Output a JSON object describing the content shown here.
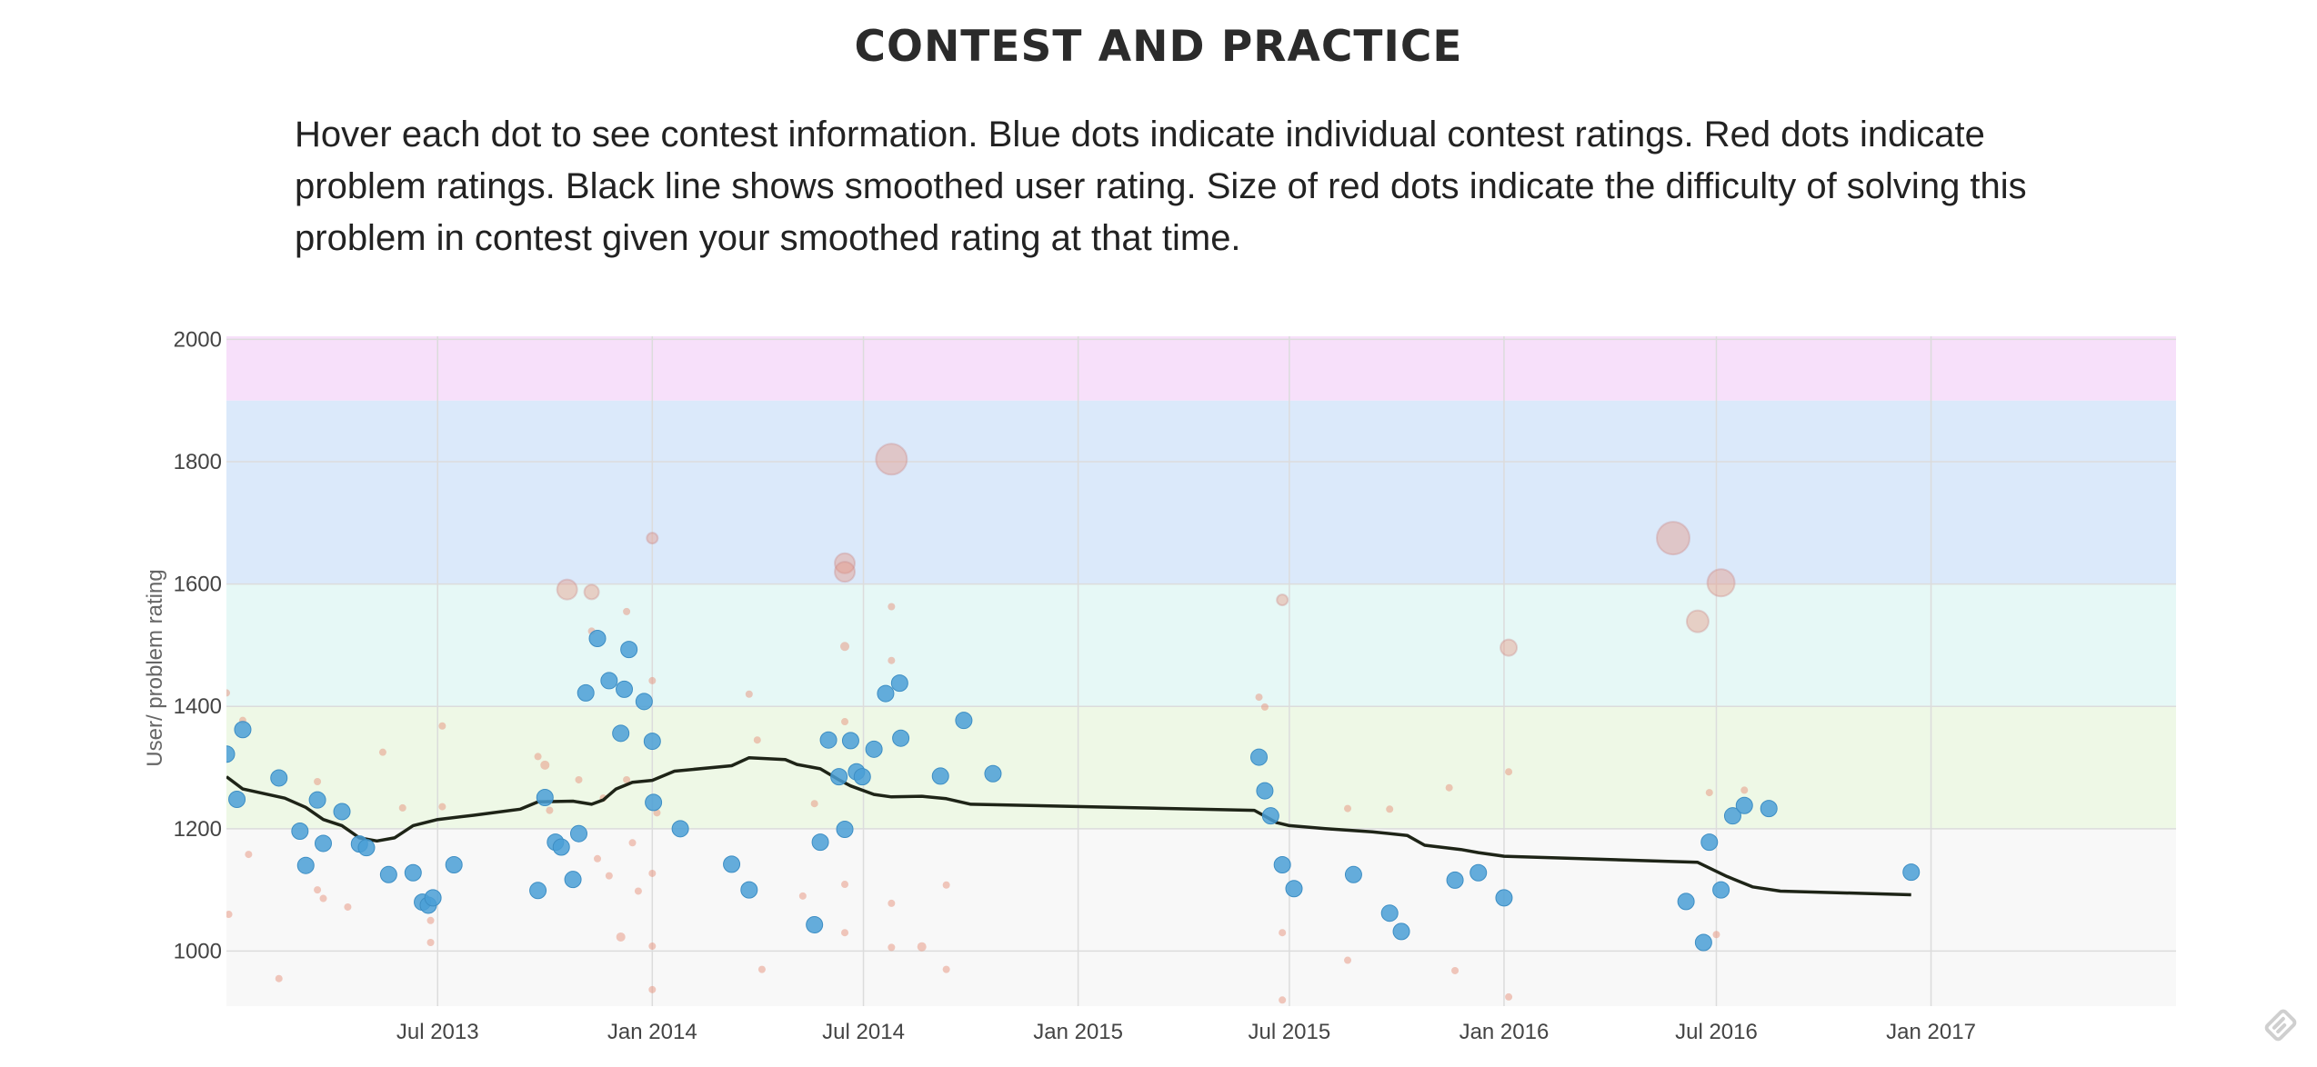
{
  "header": {
    "title": "CONTEST AND PRACTICE",
    "description": "Hover each dot to see contest information. Blue dots indicate individual contest ratings. Red dots indicate problem ratings. Black line shows smoothed user rating. Size of red dots indicate the difficulty of solving this problem in contest given your smoothed rating at that time."
  },
  "colors": {
    "contest_dot": "#4a9fd6",
    "problem_dot": "#e5927c",
    "smoothed_line": "#1e2417",
    "gridline": "#dcdcdc"
  },
  "chart_data": {
    "type": "scatter",
    "title": "",
    "xlabel": "",
    "ylabel": "User/ problem rating",
    "x_range": [
      "2013-01-01",
      "2017-07-30"
    ],
    "ylim": [
      910,
      2005
    ],
    "grid": true,
    "legend": "none",
    "x_ticks": [
      {
        "label": "Jul 2013",
        "date": "2013-07-01"
      },
      {
        "label": "Jan 2014",
        "date": "2014-01-01"
      },
      {
        "label": "Jul 2014",
        "date": "2014-07-01"
      },
      {
        "label": "Jan 2015",
        "date": "2015-01-01"
      },
      {
        "label": "Jul 2015",
        "date": "2015-07-01"
      },
      {
        "label": "Jan 2016",
        "date": "2016-01-01"
      },
      {
        "label": "Jul 2016",
        "date": "2016-07-01"
      },
      {
        "label": "Jan 2017",
        "date": "2017-01-01"
      }
    ],
    "y_ticks": [
      1000,
      1200,
      1400,
      1600,
      1800,
      2000
    ],
    "bands": [
      {
        "from": 910,
        "to": 1200,
        "color": "#f8f8f8"
      },
      {
        "from": 1200,
        "to": 1400,
        "color": "#eef8e6"
      },
      {
        "from": 1400,
        "to": 1600,
        "color": "#e6f8f6"
      },
      {
        "from": 1600,
        "to": 1900,
        "color": "#dbe9fa"
      },
      {
        "from": 1900,
        "to": 2005,
        "color": "#f7e0fa"
      }
    ],
    "series": [
      {
        "type": "line",
        "color": "#1e2417",
        "points": [
          [
            "2013-01-01",
            1285
          ],
          [
            "2013-01-15",
            1265
          ],
          [
            "2013-02-20",
            1250
          ],
          [
            "2013-03-10",
            1235
          ],
          [
            "2013-03-25",
            1215
          ],
          [
            "2013-04-10",
            1205
          ],
          [
            "2013-04-25",
            1185
          ],
          [
            "2013-05-10",
            1180
          ],
          [
            "2013-05-25",
            1185
          ],
          [
            "2013-06-10",
            1205
          ],
          [
            "2013-07-01",
            1215
          ],
          [
            "2013-08-01",
            1222
          ],
          [
            "2013-09-10",
            1232
          ],
          [
            "2013-09-25",
            1244
          ],
          [
            "2013-10-25",
            1245
          ],
          [
            "2013-11-10",
            1240
          ],
          [
            "2013-11-20",
            1247
          ],
          [
            "2013-12-01",
            1265
          ],
          [
            "2013-12-15",
            1276
          ],
          [
            "2014-01-01",
            1279
          ],
          [
            "2014-01-20",
            1294
          ],
          [
            "2014-03-10",
            1303
          ],
          [
            "2014-03-25",
            1316
          ],
          [
            "2014-04-25",
            1313
          ],
          [
            "2014-05-05",
            1305
          ],
          [
            "2014-05-25",
            1298
          ],
          [
            "2014-06-10",
            1280
          ],
          [
            "2014-06-20",
            1270
          ],
          [
            "2014-07-10",
            1256
          ],
          [
            "2014-07-25",
            1252
          ],
          [
            "2014-08-20",
            1253
          ],
          [
            "2014-09-10",
            1249
          ],
          [
            "2014-10-01",
            1240
          ],
          [
            "2015-06-01",
            1230
          ],
          [
            "2015-06-20",
            1210
          ],
          [
            "2015-07-01",
            1205
          ],
          [
            "2015-08-01",
            1200
          ],
          [
            "2015-09-10",
            1195
          ],
          [
            "2015-10-10",
            1189
          ],
          [
            "2015-10-25",
            1173
          ],
          [
            "2015-11-25",
            1166
          ],
          [
            "2015-12-10",
            1161
          ],
          [
            "2016-01-01",
            1155
          ],
          [
            "2016-06-15",
            1145
          ],
          [
            "2016-07-10",
            1122
          ],
          [
            "2016-08-01",
            1105
          ],
          [
            "2016-08-25",
            1098
          ],
          [
            "2016-12-15",
            1092
          ]
        ]
      },
      {
        "type": "contest",
        "color": "#4a9fd6",
        "points": [
          [
            "2013-01-01",
            1322
          ],
          [
            "2013-01-10",
            1248
          ],
          [
            "2013-01-15",
            1362
          ],
          [
            "2013-02-15",
            1283
          ],
          [
            "2013-03-05",
            1196
          ],
          [
            "2013-03-10",
            1140
          ],
          [
            "2013-03-20",
            1247
          ],
          [
            "2013-03-25",
            1176
          ],
          [
            "2013-04-10",
            1228
          ],
          [
            "2013-04-25",
            1175
          ],
          [
            "2013-05-01",
            1169
          ],
          [
            "2013-05-20",
            1125
          ],
          [
            "2013-06-10",
            1128
          ],
          [
            "2013-06-18",
            1080
          ],
          [
            "2013-06-23",
            1075
          ],
          [
            "2013-06-27",
            1087
          ],
          [
            "2013-07-15",
            1141
          ],
          [
            "2013-09-25",
            1099
          ],
          [
            "2013-10-01",
            1251
          ],
          [
            "2013-10-10",
            1178
          ],
          [
            "2013-10-15",
            1170
          ],
          [
            "2013-10-25",
            1117
          ],
          [
            "2013-10-30",
            1192
          ],
          [
            "2013-11-05",
            1422
          ],
          [
            "2013-11-15",
            1511
          ],
          [
            "2013-11-25",
            1442
          ],
          [
            "2013-12-05",
            1356
          ],
          [
            "2013-12-08",
            1428
          ],
          [
            "2013-12-12",
            1493
          ],
          [
            "2013-12-25",
            1408
          ],
          [
            "2014-01-01",
            1343
          ],
          [
            "2014-01-02",
            1243
          ],
          [
            "2014-01-25",
            1200
          ],
          [
            "2014-03-10",
            1142
          ],
          [
            "2014-03-25",
            1100
          ],
          [
            "2014-05-20",
            1043
          ],
          [
            "2014-05-25",
            1178
          ],
          [
            "2014-06-01",
            1345
          ],
          [
            "2014-06-10",
            1285
          ],
          [
            "2014-06-15",
            1199
          ],
          [
            "2014-06-20",
            1344
          ],
          [
            "2014-06-25",
            1293
          ],
          [
            "2014-06-30",
            1285
          ],
          [
            "2014-07-10",
            1330
          ],
          [
            "2014-07-20",
            1421
          ],
          [
            "2014-08-01",
            1438
          ],
          [
            "2014-08-02",
            1348
          ],
          [
            "2014-09-05",
            1286
          ],
          [
            "2014-09-25",
            1377
          ],
          [
            "2014-10-20",
            1290
          ],
          [
            "2015-06-05",
            1317
          ],
          [
            "2015-06-10",
            1262
          ],
          [
            "2015-06-15",
            1221
          ],
          [
            "2015-06-25",
            1141
          ],
          [
            "2015-07-05",
            1102
          ],
          [
            "2015-08-25",
            1125
          ],
          [
            "2015-09-25",
            1062
          ],
          [
            "2015-10-05",
            1032
          ],
          [
            "2015-11-20",
            1116
          ],
          [
            "2015-12-10",
            1128
          ],
          [
            "2016-01-01",
            1087
          ],
          [
            "2016-06-05",
            1081
          ],
          [
            "2016-06-20",
            1014
          ],
          [
            "2016-06-25",
            1178
          ],
          [
            "2016-07-05",
            1100
          ],
          [
            "2016-07-15",
            1221
          ],
          [
            "2016-07-25",
            1238
          ],
          [
            "2016-08-15",
            1233
          ],
          [
            "2016-12-15",
            1129
          ]
        ]
      },
      {
        "type": "problem",
        "color": "#e5927c",
        "points": [
          [
            "2013-01-01",
            1422,
            4
          ],
          [
            "2013-01-03",
            1060,
            4
          ],
          [
            "2013-01-15",
            1377,
            4
          ],
          [
            "2013-01-20",
            1158,
            4
          ],
          [
            "2013-02-15",
            955,
            4
          ],
          [
            "2013-03-20",
            1100,
            4
          ],
          [
            "2013-03-20",
            1277,
            4
          ],
          [
            "2013-03-25",
            1086,
            4
          ],
          [
            "2013-04-15",
            1072,
            4
          ],
          [
            "2013-05-15",
            1325,
            4
          ],
          [
            "2013-06-01",
            1234,
            4
          ],
          [
            "2013-06-25",
            1014,
            4
          ],
          [
            "2013-06-25",
            1050,
            4
          ],
          [
            "2013-07-05",
            1236,
            4
          ],
          [
            "2013-07-05",
            1368,
            4
          ],
          [
            "2013-09-25",
            1318,
            4
          ],
          [
            "2013-10-01",
            1304,
            5
          ],
          [
            "2013-10-05",
            1230,
            4
          ],
          [
            "2013-10-20",
            1591,
            11
          ],
          [
            "2013-10-30",
            1280,
            4
          ],
          [
            "2013-11-10",
            1587,
            8
          ],
          [
            "2013-11-10",
            1523,
            4
          ],
          [
            "2013-11-15",
            1151,
            4
          ],
          [
            "2013-11-20",
            1250,
            4
          ],
          [
            "2013-11-25",
            1123,
            4
          ],
          [
            "2013-12-05",
            1023,
            5
          ],
          [
            "2013-12-10",
            1555,
            4
          ],
          [
            "2013-12-10",
            1280,
            4
          ],
          [
            "2013-12-15",
            1177,
            4
          ],
          [
            "2013-12-20",
            1098,
            4
          ],
          [
            "2014-01-01",
            1675,
            6
          ],
          [
            "2014-01-01",
            1127,
            4
          ],
          [
            "2014-01-01",
            1008,
            4
          ],
          [
            "2014-01-01",
            1442,
            4
          ],
          [
            "2014-01-01",
            937,
            4
          ],
          [
            "2014-01-05",
            1226,
            4
          ],
          [
            "2014-03-25",
            1420,
            4
          ],
          [
            "2014-04-01",
            1345,
            4
          ],
          [
            "2014-04-05",
            970,
            4
          ],
          [
            "2014-05-10",
            1090,
            4
          ],
          [
            "2014-05-20",
            1241,
            4
          ],
          [
            "2014-06-15",
            1634,
            11
          ],
          [
            "2014-06-15",
            1620,
            11
          ],
          [
            "2014-06-15",
            1498,
            5
          ],
          [
            "2014-06-15",
            1109,
            4
          ],
          [
            "2014-06-15",
            1030,
            4
          ],
          [
            "2014-06-15",
            1375,
            4
          ],
          [
            "2014-07-25",
            1804,
            17
          ],
          [
            "2014-07-25",
            1563,
            4
          ],
          [
            "2014-07-25",
            1475,
            4
          ],
          [
            "2014-07-25",
            1078,
            4
          ],
          [
            "2014-07-25",
            1006,
            4
          ],
          [
            "2014-08-20",
            1007,
            5
          ],
          [
            "2014-09-10",
            1108,
            4
          ],
          [
            "2014-09-10",
            970,
            4
          ],
          [
            "2015-06-05",
            1415,
            4
          ],
          [
            "2015-06-10",
            1399,
            4
          ],
          [
            "2015-06-25",
            1574,
            6
          ],
          [
            "2015-06-25",
            1030,
            4
          ],
          [
            "2015-06-25",
            920,
            4
          ],
          [
            "2015-08-20",
            1233,
            4
          ],
          [
            "2015-08-20",
            985,
            4
          ],
          [
            "2015-09-25",
            1232,
            4
          ],
          [
            "2015-11-15",
            1267,
            4
          ],
          [
            "2015-11-20",
            968,
            4
          ],
          [
            "2016-01-05",
            1496,
            9
          ],
          [
            "2016-01-05",
            1293,
            4
          ],
          [
            "2016-01-05",
            925,
            4
          ],
          [
            "2016-05-25",
            1675,
            18
          ],
          [
            "2016-06-15",
            1539,
            12
          ],
          [
            "2016-06-25",
            1259,
            4
          ],
          [
            "2016-07-05",
            1602,
            15
          ],
          [
            "2016-07-25",
            1263,
            4
          ],
          [
            "2016-07-01",
            1027,
            4
          ]
        ]
      }
    ]
  }
}
